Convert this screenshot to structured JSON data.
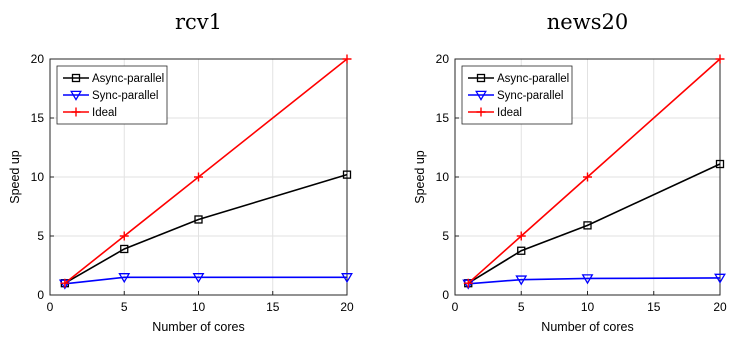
{
  "chart_data": [
    {
      "type": "line",
      "title": "rcv1",
      "xlabel": "Number of cores",
      "ylabel": "Speed up",
      "xlim": [
        0,
        20
      ],
      "ylim": [
        0,
        20
      ],
      "xticks": [
        0,
        5,
        10,
        15,
        20
      ],
      "yticks": [
        0,
        5,
        10,
        15,
        20
      ],
      "grid": true,
      "legend_position": "top-left",
      "series": [
        {
          "name": "Async-parallel",
          "color": "#000000",
          "marker": "square",
          "x": [
            1,
            5,
            10,
            20
          ],
          "y": [
            1.0,
            3.9,
            6.4,
            10.2
          ]
        },
        {
          "name": "Sync-parallel",
          "color": "#0000ff",
          "marker": "triangle-down",
          "x": [
            1,
            5,
            10,
            20
          ],
          "y": [
            0.95,
            1.5,
            1.5,
            1.5
          ]
        },
        {
          "name": "Ideal",
          "color": "#ff0000",
          "marker": "plus",
          "x": [
            1,
            5,
            10,
            20
          ],
          "y": [
            1,
            5,
            10,
            20
          ]
        }
      ]
    },
    {
      "type": "line",
      "title": "news20",
      "xlabel": "Number of cores",
      "ylabel": "Speed up",
      "xlim": [
        0,
        20
      ],
      "ylim": [
        0,
        20
      ],
      "xticks": [
        0,
        5,
        10,
        15,
        20
      ],
      "yticks": [
        0,
        5,
        10,
        15,
        20
      ],
      "grid": true,
      "legend_position": "top-left",
      "series": [
        {
          "name": "Async-parallel",
          "color": "#000000",
          "marker": "square",
          "x": [
            1,
            5,
            10,
            20
          ],
          "y": [
            1.0,
            3.75,
            5.9,
            11.1
          ]
        },
        {
          "name": "Sync-parallel",
          "color": "#0000ff",
          "marker": "triangle-down",
          "x": [
            1,
            5,
            10,
            20
          ],
          "y": [
            0.95,
            1.3,
            1.4,
            1.45
          ]
        },
        {
          "name": "Ideal",
          "color": "#ff0000",
          "marker": "plus",
          "x": [
            1,
            5,
            10,
            20
          ],
          "y": [
            1,
            5,
            10,
            20
          ]
        }
      ]
    }
  ]
}
